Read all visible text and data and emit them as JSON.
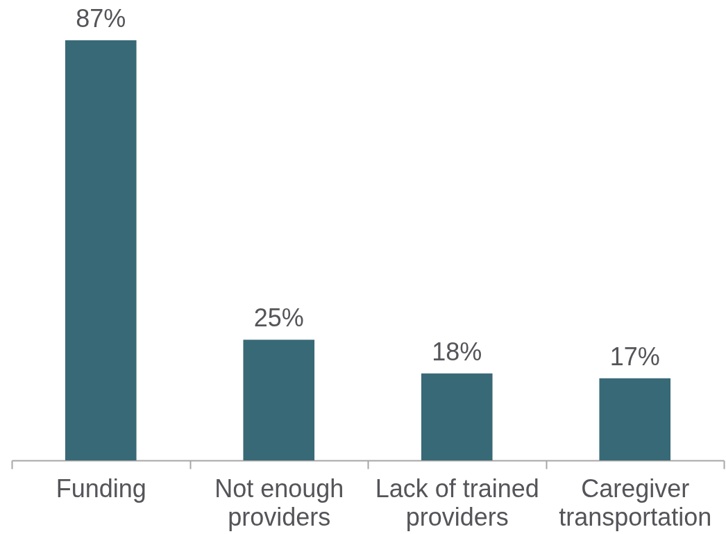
{
  "chart_data": {
    "type": "bar",
    "categories": [
      "Funding",
      "Not enough providers",
      "Lack of trained providers",
      "Caregiver transportation"
    ],
    "values": [
      87,
      25,
      18,
      17
    ],
    "value_labels": [
      "87%",
      "25%",
      "18%",
      "17%"
    ],
    "color": "#386977"
  }
}
